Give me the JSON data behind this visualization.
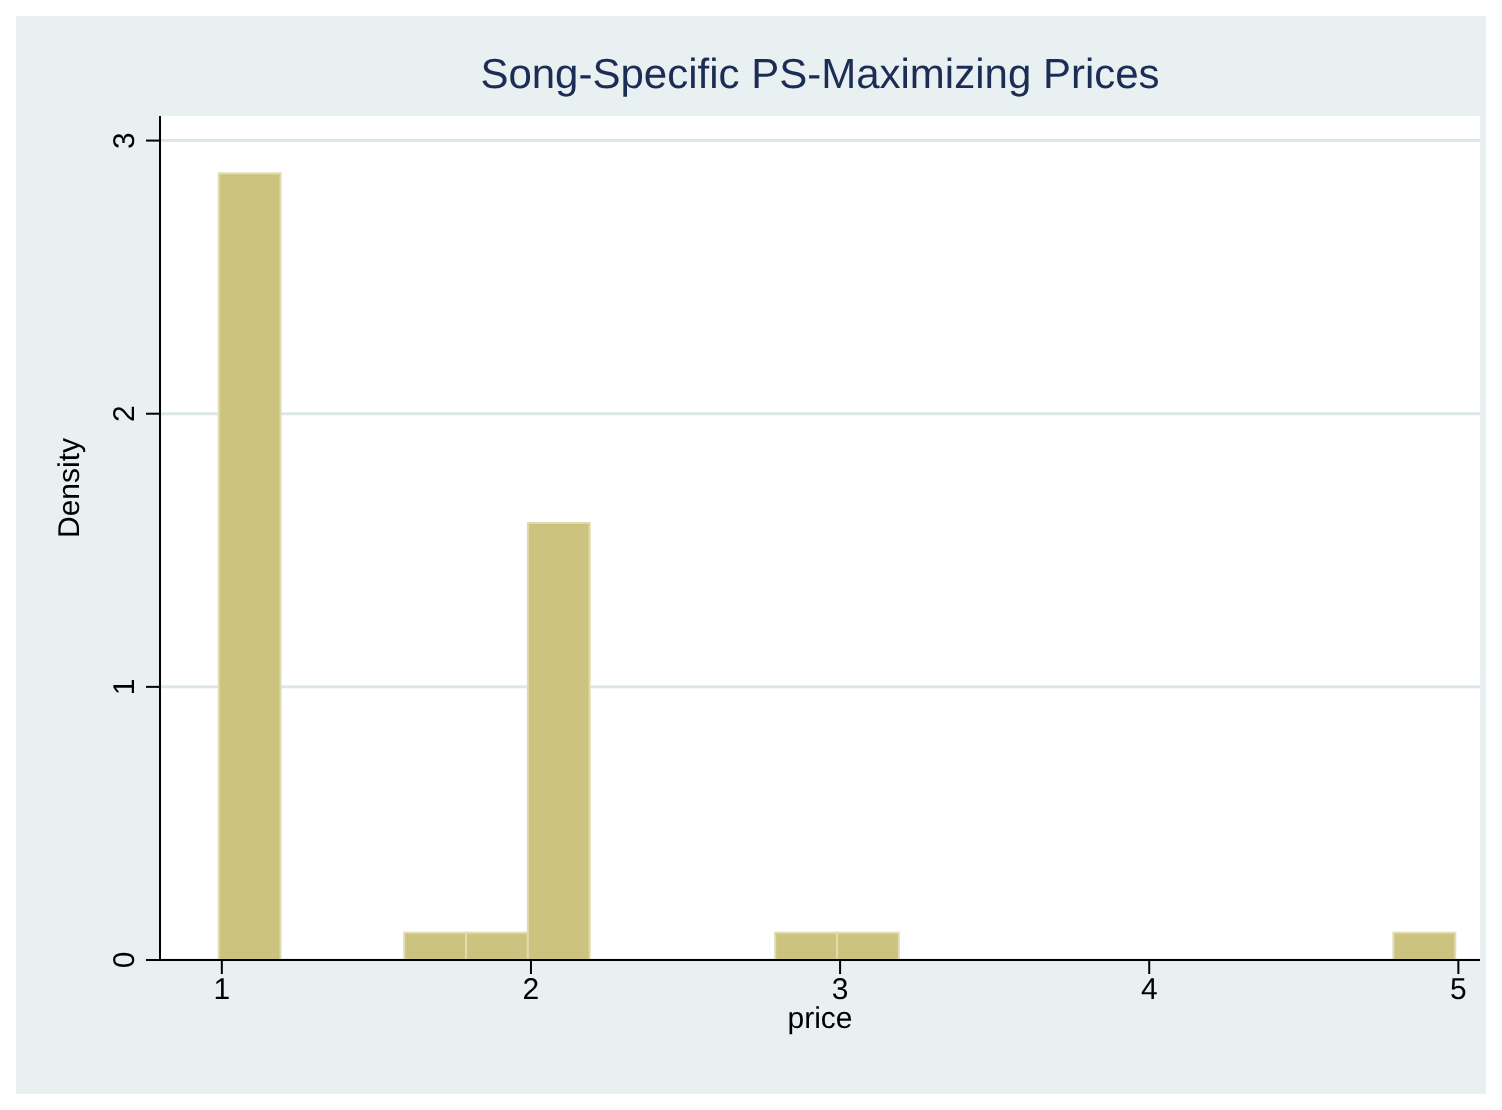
{
  "chart_data": {
    "type": "histogram",
    "title": "Song-Specific PS-Maximizing Prices",
    "xlabel": "price",
    "ylabel": "Density",
    "bins": [
      0.99,
      1.19,
      1.39,
      1.59,
      1.79,
      1.99,
      2.19,
      2.39,
      2.59,
      2.79,
      2.99,
      3.19,
      3.39,
      3.59,
      3.79,
      3.99,
      4.19,
      4.39,
      4.59,
      4.79,
      4.99
    ],
    "values": [
      2.88,
      0,
      0,
      0.1,
      0.1,
      1.6,
      0,
      0,
      0,
      0.1,
      0.1,
      0,
      0,
      0,
      0,
      0,
      0,
      0,
      0,
      0.1
    ],
    "color": "#cbc37f",
    "xlim": [
      0.8,
      5.07
    ],
    "xticks": [
      1,
      2,
      3,
      4,
      5
    ],
    "ylim": [
      0,
      3.09
    ],
    "yticks": [
      0,
      1,
      2,
      3
    ],
    "grid": "y"
  }
}
